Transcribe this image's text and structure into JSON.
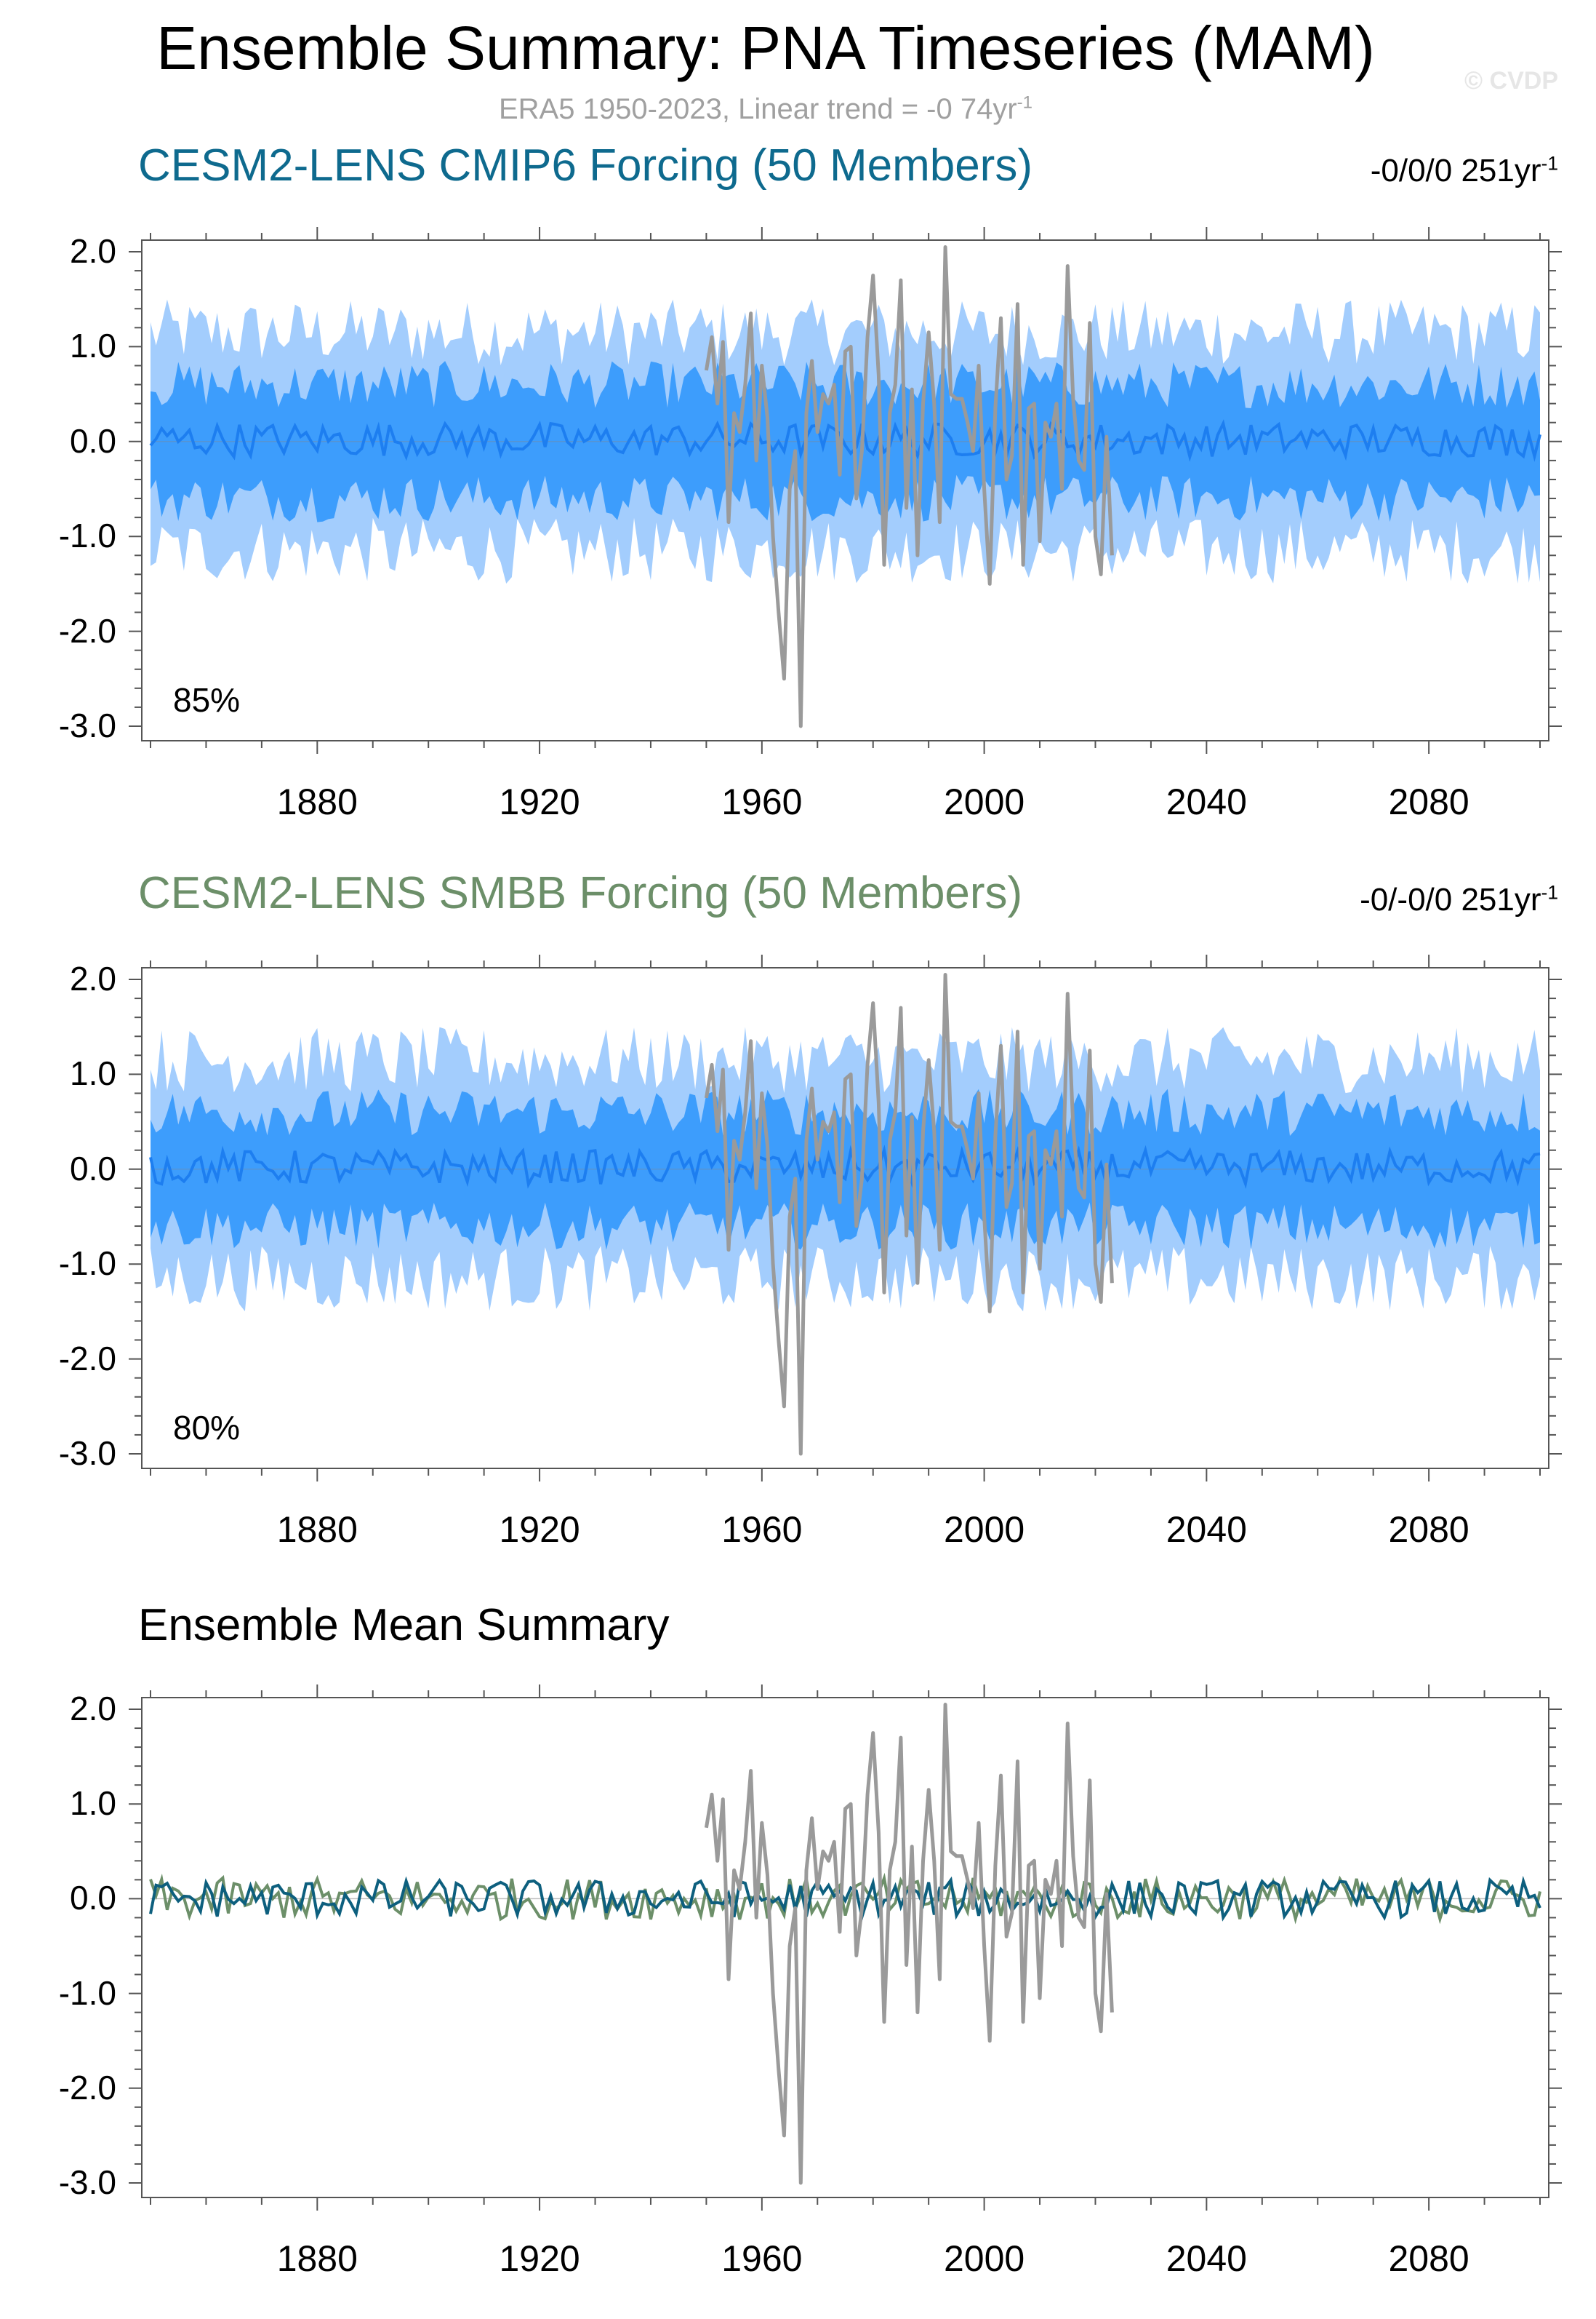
{
  "title": "Ensemble Summary: PNA Timeseries (MAM)",
  "watermark": "© CVDP",
  "subtitle": {
    "text": "ERA5 1950-2023, Linear trend = -0 74yr",
    "sup": "-1"
  },
  "colors": {
    "band_outer": "#a3cdfd",
    "band_inner": "#3d9dfc",
    "ens_mean_line": "#1d7ef0",
    "obs_line": "#9a9a9a",
    "cmip6_title": "#0e6a8e",
    "smbb_title": "#6c8f69",
    "cmip6_mean": "#0d5f7e",
    "smbb_mean": "#6c8f69"
  },
  "chart_data": [
    {
      "type": "area",
      "title": "CESM2-LENS CMIP6 Forcing (50 Members)",
      "trend_text": "-0/0/0 251yr",
      "trend_sup": "-1",
      "annotation": "85%",
      "xlim": [
        1850,
        2100
      ],
      "ylim": [
        -3.0,
        2.0
      ],
      "xticks": [
        "1880",
        "1920",
        "1960",
        "2000",
        "2040",
        "2080"
      ],
      "yticks": [
        "2.0",
        "1.0",
        "0.0",
        "-1.0",
        "-2.0",
        "-3.0"
      ],
      "series": [
        {
          "role": "outer_band",
          "lower_approx": -1.3,
          "upper_approx": 1.3
        },
        {
          "role": "inner_band",
          "lower_approx": -0.6,
          "upper_approx": 0.6
        },
        {
          "role": "ensemble_mean",
          "range_approx": [
            -0.3,
            0.35
          ]
        },
        {
          "role": "observations",
          "x_start": 1950,
          "x_end": 2023
        }
      ]
    },
    {
      "type": "area",
      "title": "CESM2-LENS SMBB Forcing (50 Members)",
      "trend_text": "-0/-0/0 251yr",
      "trend_sup": "-1",
      "annotation": "80%",
      "xlim": [
        1850,
        2100
      ],
      "ylim": [
        -3.0,
        2.0
      ],
      "xticks": [
        "1880",
        "1920",
        "1960",
        "2000",
        "2040",
        "2080"
      ],
      "yticks": [
        "2.0",
        "1.0",
        "0.0",
        "-1.0",
        "-2.0",
        "-3.0"
      ],
      "series": [
        {
          "role": "outer_band",
          "lower_approx": -1.3,
          "upper_approx": 1.3
        },
        {
          "role": "inner_band",
          "lower_approx": -0.6,
          "upper_approx": 0.6
        },
        {
          "role": "ensemble_mean",
          "range_approx": [
            -0.3,
            0.35
          ]
        },
        {
          "role": "observations",
          "x_start": 1950,
          "x_end": 2023
        }
      ]
    },
    {
      "type": "line",
      "title": "Ensemble Mean Summary",
      "xlim": [
        1850,
        2100
      ],
      "ylim": [
        -3.0,
        2.0
      ],
      "xticks": [
        "1880",
        "1920",
        "1960",
        "2000",
        "2040",
        "2080"
      ],
      "yticks": [
        "2.0",
        "1.0",
        "0.0",
        "-1.0",
        "-2.0",
        "-3.0"
      ],
      "series": [
        {
          "role": "observations",
          "x_start": 1950,
          "x_end": 2023
        },
        {
          "role": "cmip6_ensemble_mean"
        },
        {
          "role": "smbb_ensemble_mean"
        }
      ]
    }
  ],
  "obs_series": {
    "x_start": 1950,
    "values": [
      0.75,
      1.1,
      0.4,
      1.05,
      -0.85,
      0.3,
      0.1,
      0.6,
      1.35,
      -0.2,
      0.8,
      0.25,
      -1.0,
      -1.8,
      -2.5,
      -0.5,
      -0.1,
      -3.0,
      0.3,
      0.85,
      0.1,
      0.5,
      0.4,
      0.6,
      -0.35,
      0.95,
      1.0,
      -0.6,
      -0.1,
      1.1,
      1.75,
      0.7,
      -1.3,
      0.3,
      0.6,
      1.7,
      -0.7,
      0.55,
      -1.2,
      0.4,
      1.15,
      0.4,
      -0.85,
      2.05,
      0.5,
      0.45,
      0.45,
      0.2,
      -0.1,
      0.8,
      -0.5,
      -1.5,
      0.35,
      1.3,
      -0.4,
      -0.15,
      1.45,
      -1.3,
      0.35,
      0.4,
      -1.05,
      0.2,
      0.05,
      0.4,
      -0.5,
      1.85,
      0.45,
      -0.2,
      -0.3,
      1.25,
      -1.0,
      -1.4,
      0.05,
      -1.2
    ]
  }
}
